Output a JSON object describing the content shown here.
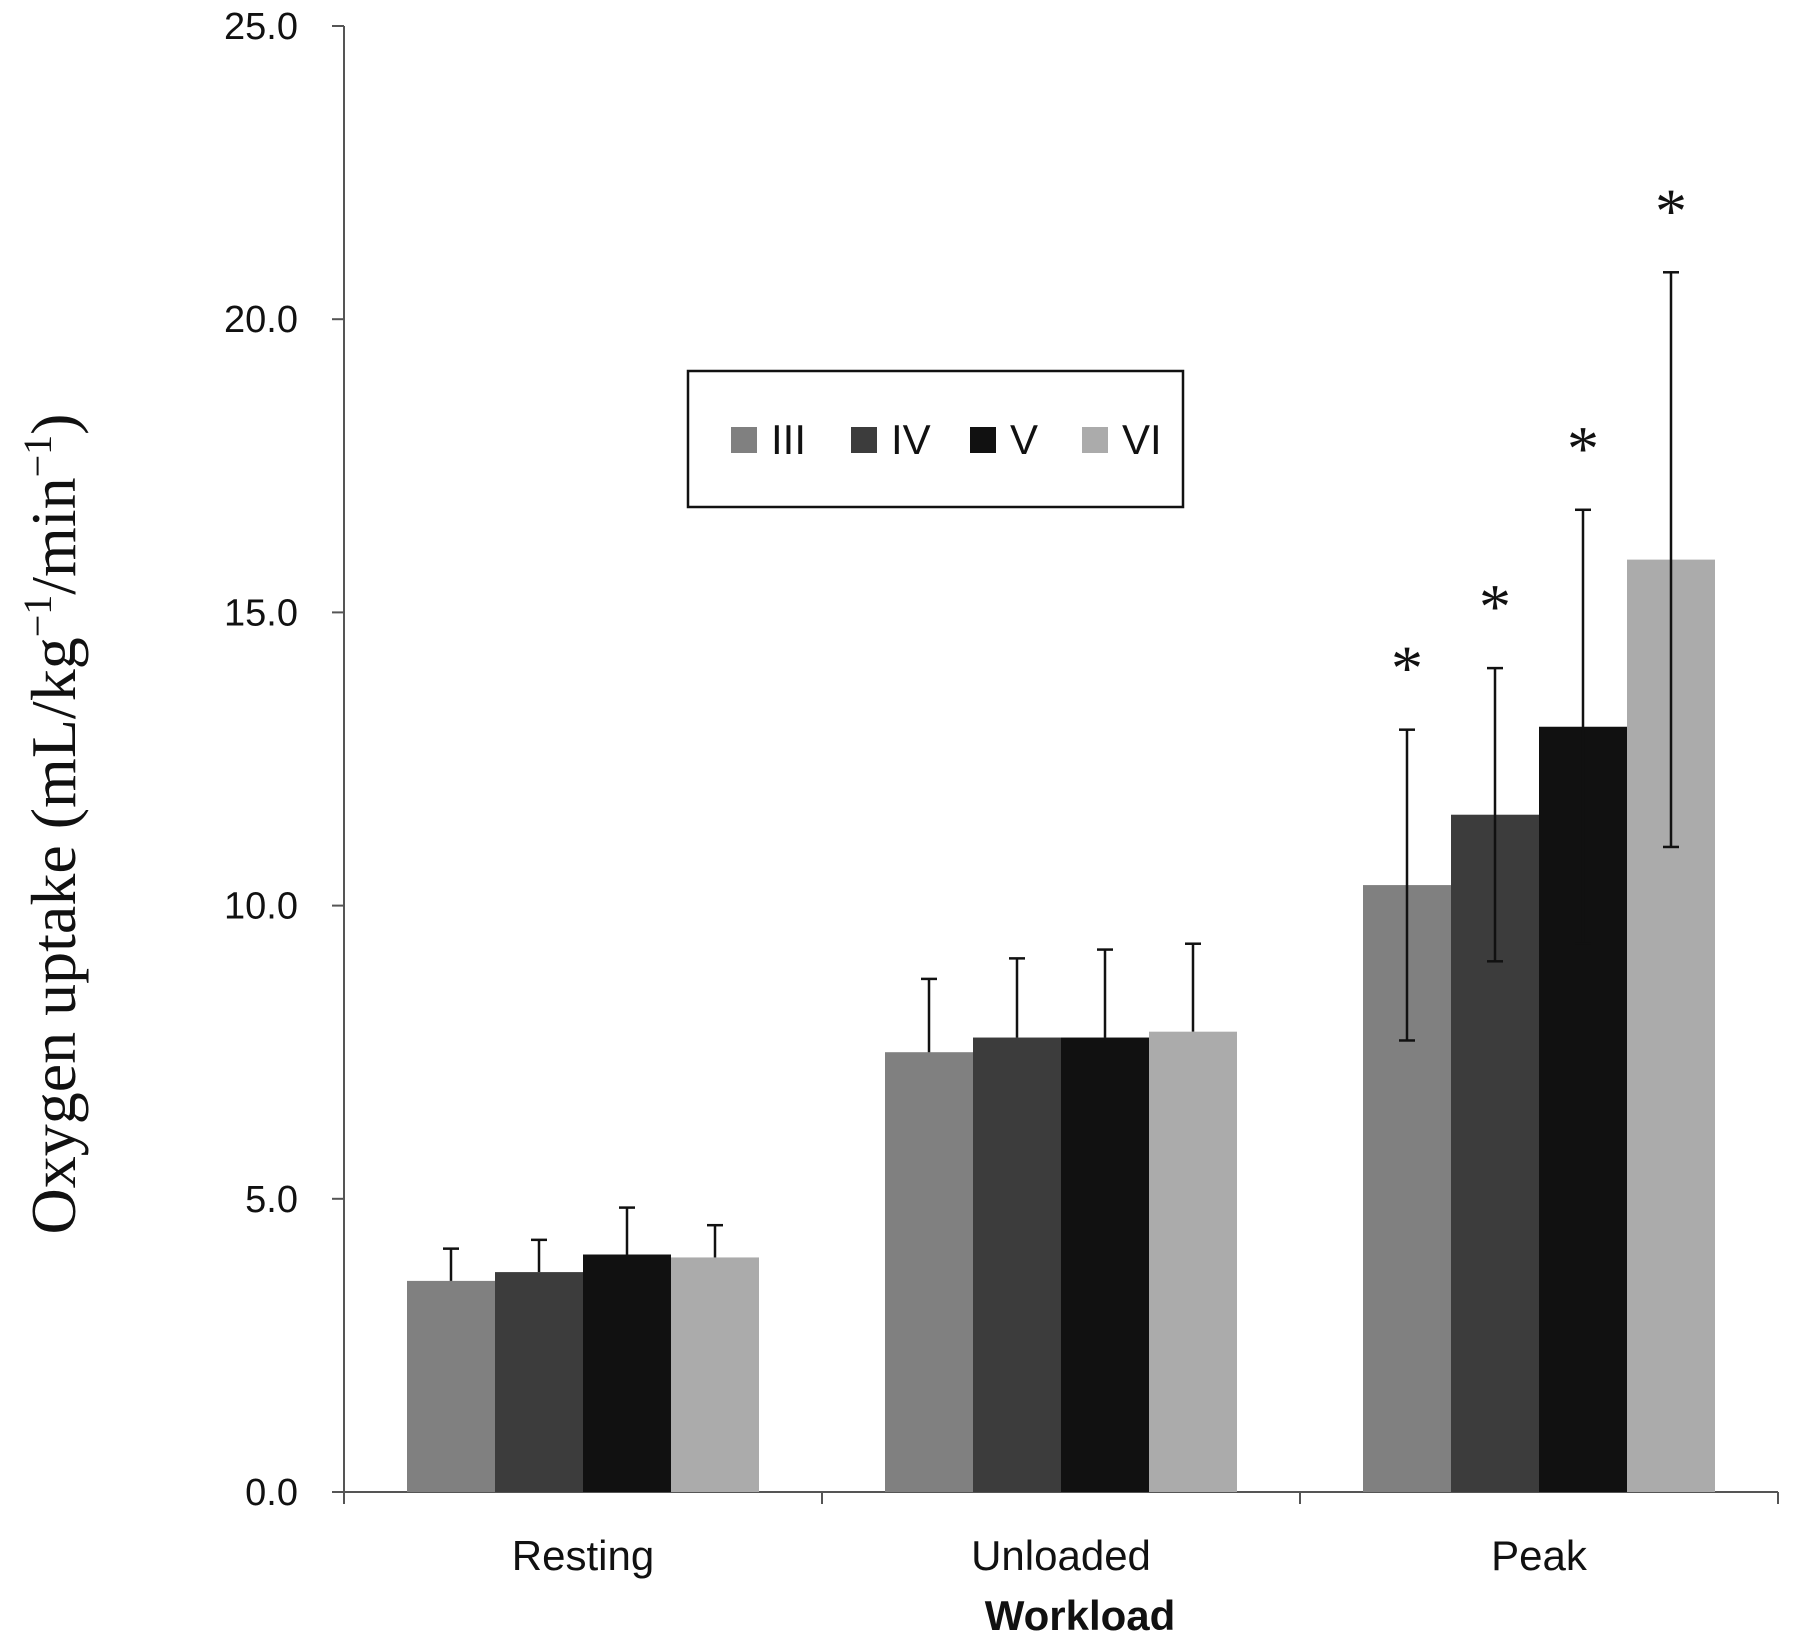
{
  "chart_data": {
    "type": "bar",
    "categories": [
      "Resting",
      "Unloaded",
      "Peak"
    ],
    "series": [
      {
        "name": "III",
        "color": "#808080",
        "values": [
          3.6,
          7.5,
          10.35
        ],
        "errors": [
          0.55,
          1.25,
          2.65
        ],
        "significant": [
          false,
          false,
          true
        ]
      },
      {
        "name": "IV",
        "color": "#3c3c3c",
        "values": [
          3.75,
          7.75,
          11.55
        ],
        "errors": [
          0.55,
          1.35,
          2.5
        ],
        "significant": [
          false,
          false,
          true
        ]
      },
      {
        "name": "V",
        "color": "#111111",
        "values": [
          4.05,
          7.75,
          13.05
        ],
        "errors": [
          0.8,
          1.5,
          3.7
        ],
        "significant": [
          false,
          false,
          true
        ]
      },
      {
        "name": "VI",
        "color": "#ababab",
        "values": [
          4.0,
          7.85,
          15.9
        ],
        "errors": [
          0.55,
          1.5,
          4.9
        ],
        "significant": [
          false,
          false,
          true
        ]
      }
    ],
    "xlabel": "Workload",
    "ylabel": {
      "main": "Oxygen uptake (mL/kg",
      "sup1": "−1",
      "mid": "/min",
      "sup2": "−1",
      "end": ")"
    },
    "ylim": [
      0,
      25
    ],
    "yticks": [
      "0.0",
      "5.0",
      "10.0",
      "15.0",
      "20.0",
      "25.0"
    ],
    "significance_marker": "*",
    "grid": false,
    "legend_position": "top-center"
  }
}
